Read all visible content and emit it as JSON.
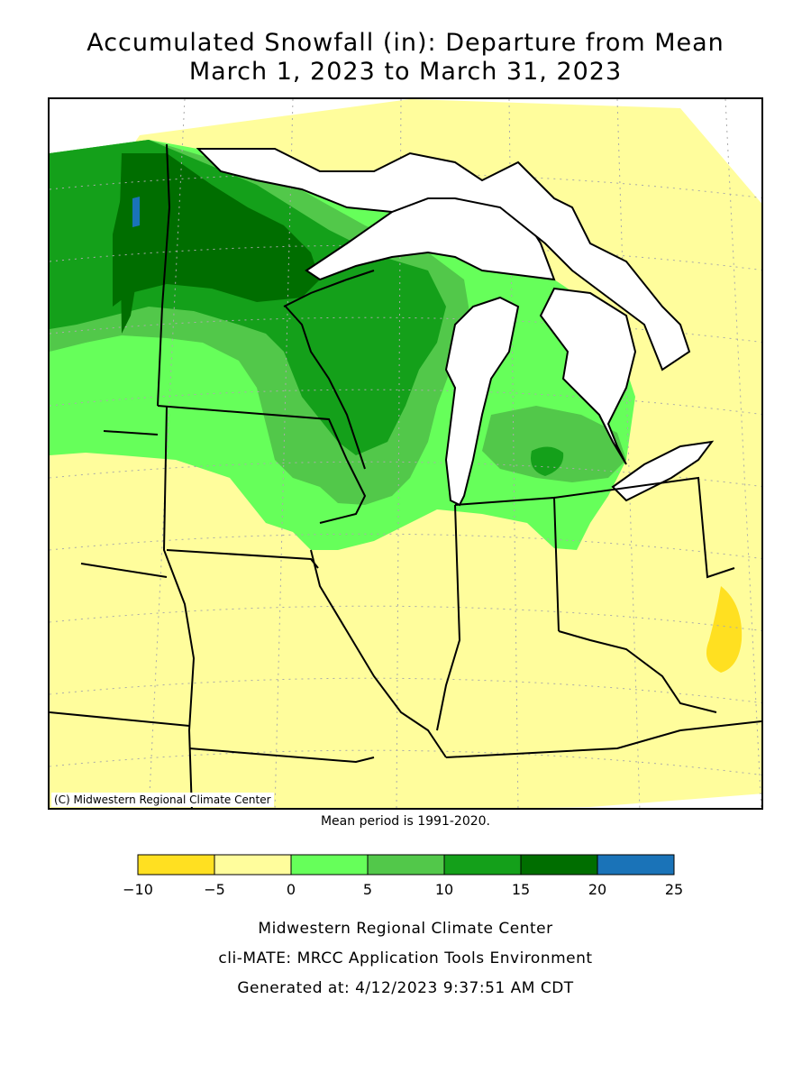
{
  "title_line1": "Accumulated Snowfall (in): Departure from Mean",
  "title_line2": "March 1, 2023 to March 31, 2023",
  "credit": "(C) Midwestern Regional Climate Center",
  "mean_period": "Mean period is 1991-2020.",
  "legend": {
    "bins": [
      {
        "from": -10,
        "to": -5,
        "color": "#ffe021"
      },
      {
        "from": -5,
        "to": 0,
        "color": "#fffd9c"
      },
      {
        "from": 0,
        "to": 5,
        "color": "#66ff5a"
      },
      {
        "from": 5,
        "to": 10,
        "color": "#52c84a"
      },
      {
        "from": 10,
        "to": 15,
        "color": "#14a01a"
      },
      {
        "from": 15,
        "to": 20,
        "color": "#006e00"
      },
      {
        "from": 20,
        "to": 25,
        "color": "#1a73b8"
      }
    ],
    "tick_labels": [
      "-10",
      "-5",
      "0",
      "5",
      "10",
      "15",
      "20",
      "25"
    ]
  },
  "footer": {
    "line1": "Midwestern Regional Climate Center",
    "line2": "cli-MATE: MRCC Application Tools Environment",
    "line3": "Generated at: 4/12/2023 9:37:51 AM CDT"
  }
}
